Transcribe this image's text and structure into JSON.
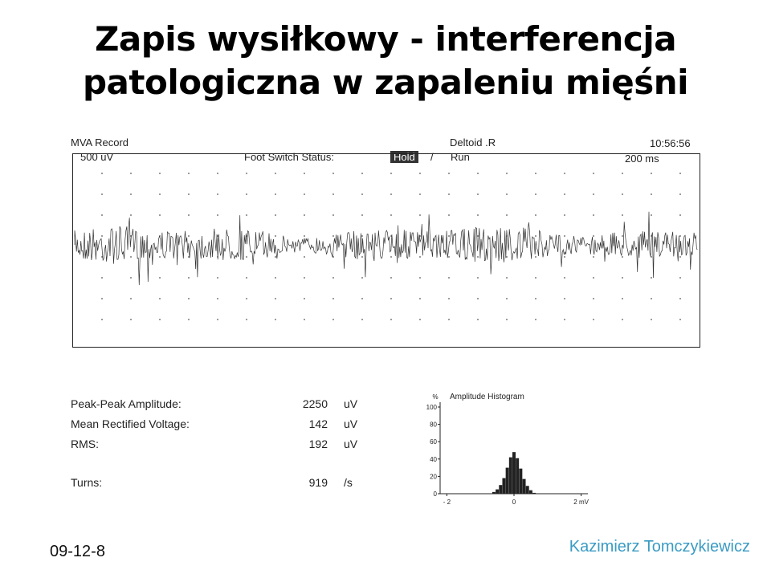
{
  "title": {
    "line1": "Zapis wysiłkowy - interferencja",
    "line2": "patologiczna w zapaleniu mięśni"
  },
  "record": {
    "name": "MVA Record",
    "muscle": "Deltoid .R",
    "time": "10:56:56",
    "sensitivity": "500 uV",
    "foot_switch_label": "Foot Switch Status:",
    "foot_switch_hold": "Hold",
    "foot_switch_sep": "/",
    "foot_switch_run": "Run",
    "sweep": "200 ms"
  },
  "stats": [
    {
      "label": "Peak-Peak Amplitude:",
      "value": "2250",
      "unit": "uV"
    },
    {
      "label": "Mean Rectified Voltage:",
      "value": "142",
      "unit": "uV"
    },
    {
      "label": "RMS:",
      "value": "192",
      "unit": "uV"
    },
    {
      "label": "Turns:",
      "value": "919",
      "unit": "/s"
    }
  ],
  "chart_data": {
    "type": "bar",
    "title": "Amplitude Histogram",
    "ylabel": "%",
    "y_ticks": [
      "100",
      "80",
      "60",
      "40",
      "20",
      "0"
    ],
    "ylim": [
      0,
      100
    ],
    "xlim": [
      -2.2,
      2.2
    ],
    "x_tick_labels": [
      "- 2",
      "0",
      "2 mV"
    ],
    "x": [
      -0.6,
      -0.5,
      -0.4,
      -0.3,
      -0.2,
      -0.1,
      0.0,
      0.1,
      0.2,
      0.3,
      0.4,
      0.5,
      0.6
    ],
    "values": [
      2,
      5,
      10,
      18,
      30,
      42,
      48,
      41,
      29,
      17,
      9,
      4,
      1
    ]
  },
  "footer": {
    "date": "09-12-8",
    "author": "Kazimierz Tomczykiewicz"
  }
}
